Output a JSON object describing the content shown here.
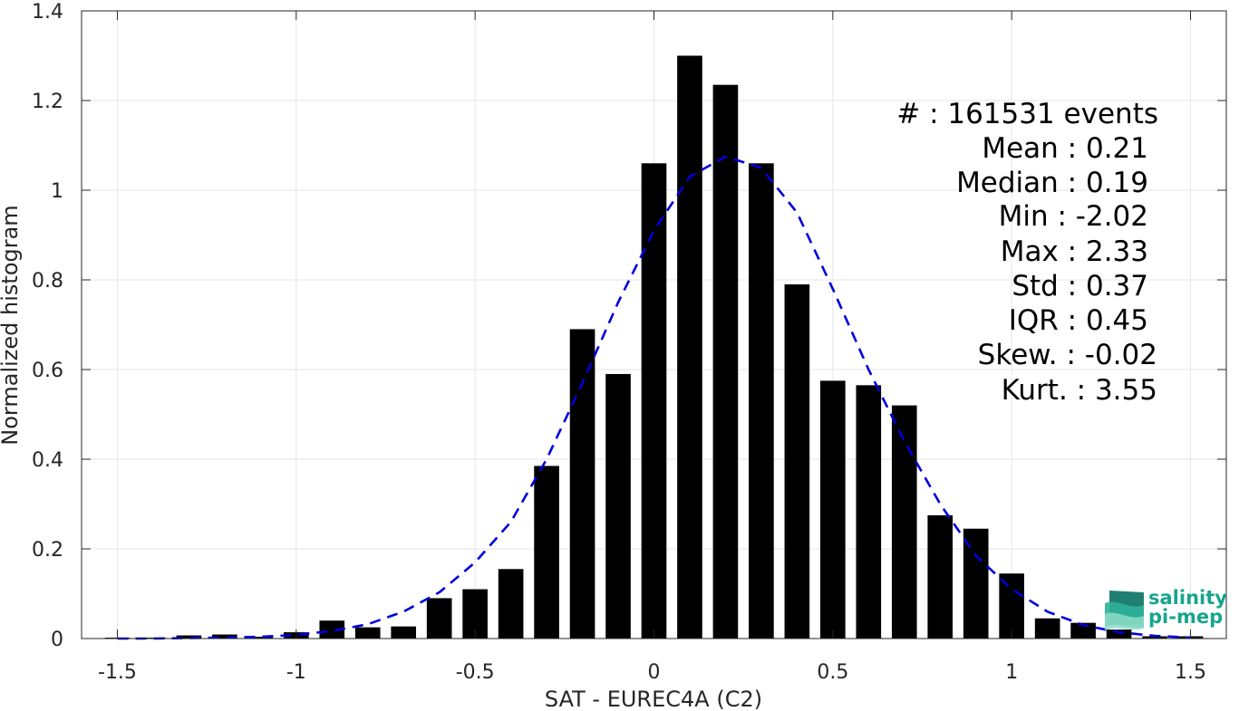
{
  "chart_data": {
    "type": "bar",
    "xlabel": "SAT - EUREC4A (C2)",
    "ylabel": "Normalized histogram",
    "xlim": [
      -1.6,
      1.6
    ],
    "ylim": [
      0,
      1.4
    ],
    "grid": true,
    "x_ticks": [
      -1.5,
      -1,
      -0.5,
      0,
      0.5,
      1,
      1.5
    ],
    "x_tick_labels": [
      "-1.5",
      "-1",
      "-0.5",
      "0",
      "0.5",
      "1",
      "1.5"
    ],
    "y_ticks": [
      0,
      0.2,
      0.4,
      0.6,
      0.8,
      1,
      1.2,
      1.4
    ],
    "y_tick_labels": [
      "0",
      "0.2",
      "0.4",
      "0.6",
      "0.8",
      "1",
      "1.2",
      "1.4"
    ],
    "bar_width": 0.07,
    "bar_color": "#000000",
    "x": [
      -1.5,
      -1.4,
      -1.3,
      -1.2,
      -1.1,
      -1.0,
      -0.9,
      -0.8,
      -0.7,
      -0.6,
      -0.5,
      -0.4,
      -0.3,
      -0.2,
      -0.1,
      0.0,
      0.1,
      0.2,
      0.3,
      0.4,
      0.5,
      0.6,
      0.7,
      0.8,
      0.9,
      1.0,
      1.1,
      1.2,
      1.3,
      1.4,
      1.5
    ],
    "values": [
      0.002,
      0.002,
      0.007,
      0.009,
      0.004,
      0.014,
      0.04,
      0.025,
      0.027,
      0.09,
      0.11,
      0.155,
      0.385,
      0.69,
      0.59,
      1.06,
      1.3,
      1.235,
      1.06,
      0.79,
      0.575,
      0.565,
      0.52,
      0.275,
      0.245,
      0.145,
      0.045,
      0.035,
      0.02,
      0.005,
      0.005
    ],
    "fit_curve": {
      "style": "dashed",
      "color": "#0000dd",
      "x": [
        -1.5,
        -1.4,
        -1.3,
        -1.2,
        -1.1,
        -1.0,
        -0.9,
        -0.8,
        -0.7,
        -0.6,
        -0.5,
        -0.4,
        -0.3,
        -0.2,
        -0.1,
        0.0,
        0.1,
        0.2,
        0.3,
        0.4,
        0.5,
        0.6,
        0.7,
        0.8,
        0.9,
        1.0,
        1.1,
        1.2,
        1.3,
        1.4,
        1.5
      ],
      "y": [
        0.0,
        0.0,
        0.001,
        0.002,
        0.004,
        0.008,
        0.017,
        0.032,
        0.06,
        0.103,
        0.17,
        0.26,
        0.4,
        0.57,
        0.75,
        0.91,
        1.03,
        1.075,
        1.05,
        0.95,
        0.78,
        0.6,
        0.44,
        0.3,
        0.185,
        0.11,
        0.06,
        0.03,
        0.014,
        0.006,
        0.002
      ]
    }
  },
  "stats": [
    {
      "label": "#  : 161531 events"
    },
    {
      "label": "Mean : 0.21"
    },
    {
      "label": "Median : 0.19"
    },
    {
      "label": "Min : -2.02"
    },
    {
      "label": "Max : 2.33"
    },
    {
      "label": "Std : 0.37"
    },
    {
      "label": "IQR : 0.45"
    },
    {
      "label": "Skew. : -0.02"
    },
    {
      "label": "Kurt. : 3.55"
    }
  ],
  "logo": {
    "line1": "salinity",
    "line2": "pi-mep",
    "color": "#17a58c"
  }
}
